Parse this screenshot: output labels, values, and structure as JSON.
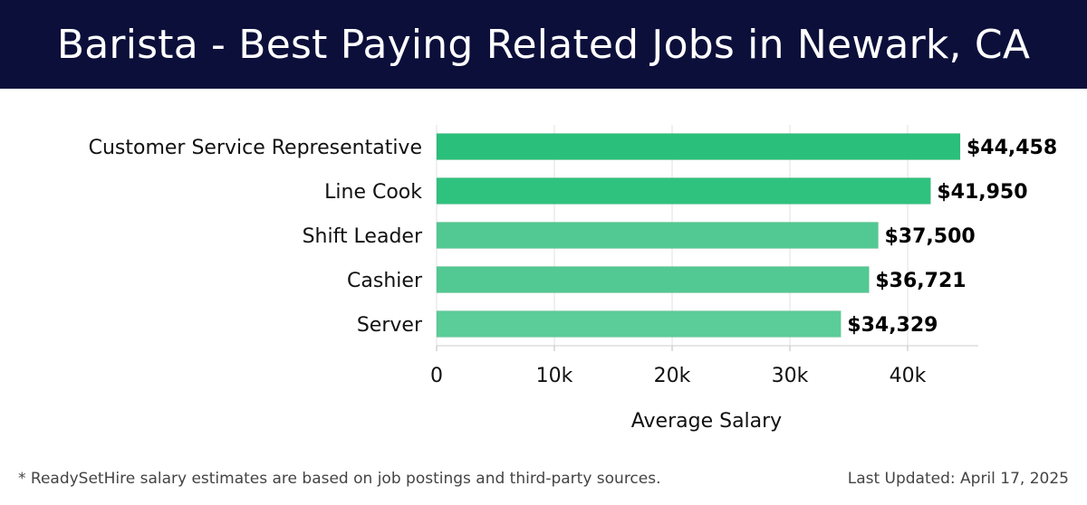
{
  "header": {
    "title": "Barista - Best Paying Related Jobs in Newark, CA"
  },
  "chart_data": {
    "type": "bar",
    "orientation": "horizontal",
    "categories": [
      "Customer Service Representative",
      "Line Cook",
      "Shift Leader",
      "Cashier",
      "Server"
    ],
    "values": [
      44458,
      41950,
      37500,
      36721,
      34329
    ],
    "value_labels": [
      "$44,458",
      "$41,950",
      "$37,500",
      "$36,721",
      "$34,329"
    ],
    "bar_colors": [
      "#2abf7a",
      "#2fc27e",
      "#52c992",
      "#52c992",
      "#5acd98"
    ],
    "xlabel": "Average Salary",
    "ylabel": "",
    "xlim": [
      0,
      46000
    ],
    "xticks": [
      0,
      10000,
      20000,
      30000,
      40000
    ],
    "xtick_labels": [
      "0",
      "10k",
      "20k",
      "30k",
      "40k"
    ],
    "grid": "vertical"
  },
  "footer": {
    "note": "* ReadySetHire salary estimates are based on job postings and third-party sources.",
    "updated": "Last Updated: April 17, 2025"
  }
}
